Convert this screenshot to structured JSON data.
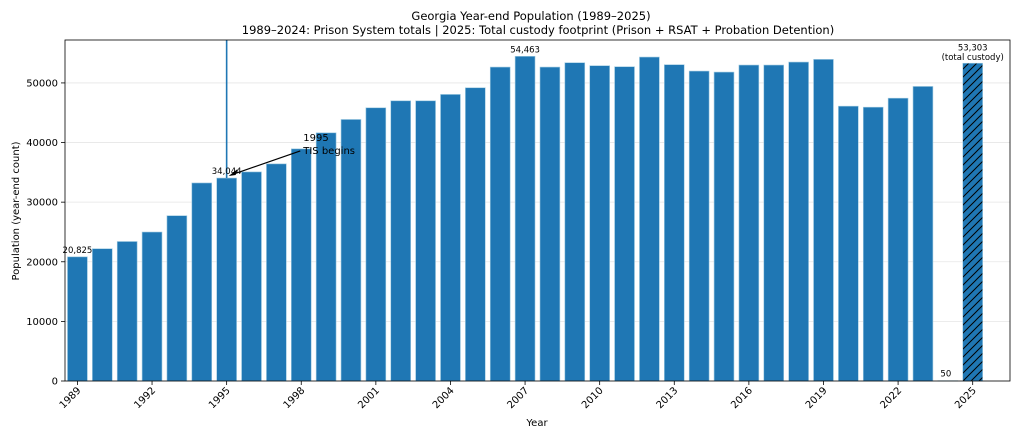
{
  "chart_data": {
    "type": "bar",
    "title": "Georgia Year-end Population (1989–2025)",
    "subtitle": "1989–2024: Prison System totals | 2025: Total custody footprint (Prison + RSAT + Probation Detention)",
    "xlabel": "Year",
    "ylabel": "Population (year-end count)",
    "xlim": [
      1988.5,
      2026.5
    ],
    "ylim": [
      0,
      57200
    ],
    "grid": "horizontal",
    "bar_color": "#1f77b4",
    "x": [
      1989,
      1990,
      1991,
      1992,
      1993,
      1994,
      1995,
      1996,
      1997,
      1998,
      1999,
      2000,
      2001,
      2002,
      2003,
      2004,
      2005,
      2006,
      2007,
      2008,
      2009,
      2010,
      2011,
      2012,
      2013,
      2014,
      2015,
      2016,
      2017,
      2018,
      2019,
      2020,
      2021,
      2022,
      2023,
      2024,
      2025
    ],
    "values": [
      20825,
      22190,
      23400,
      24990,
      27730,
      33220,
      34044,
      35070,
      36420,
      38940,
      41630,
      43870,
      45830,
      47000,
      47000,
      48070,
      49190,
      52660,
      54463,
      52660,
      53390,
      52890,
      52720,
      54340,
      53060,
      51990,
      51820,
      53000,
      53000,
      53500,
      53950,
      46100,
      45930,
      47440,
      49410,
      50,
      53303
    ],
    "hatched_years": [
      2025
    ],
    "xticks": [
      "1989",
      "1992",
      "1995",
      "1998",
      "2001",
      "2004",
      "2007",
      "2010",
      "2013",
      "2016",
      "2019",
      "2022",
      "2025"
    ],
    "yticks": [
      "0",
      "10000",
      "20000",
      "30000",
      "40000",
      "50000"
    ],
    "data_labels": [
      {
        "year": 1989,
        "text": "20,825"
      },
      {
        "year": 1995,
        "text": "34,044"
      },
      {
        "year": 2007,
        "text": "54,463"
      },
      {
        "year": 2024,
        "text": "50"
      },
      {
        "year": 2025,
        "text": "53,303"
      },
      {
        "year": 2025,
        "text": "(total custody)"
      }
    ],
    "vline": {
      "year": 1995,
      "color": "#1f77b4"
    },
    "annotation": {
      "year": 1995,
      "value": 34044,
      "text_year": 1998,
      "text_value": 39600,
      "lines": [
        "1995",
        "TIS begins"
      ]
    }
  }
}
